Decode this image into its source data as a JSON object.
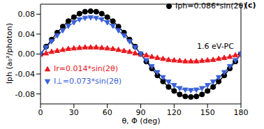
{
  "chart_data": {
    "type": "line",
    "annotations": [
      "(c)",
      "1.6 eV-PC"
    ],
    "x_label": "θ, Φ (deg)",
    "y_label": "Iph (a₀²/photon)",
    "x": [
      0,
      5,
      10,
      15,
      20,
      25,
      30,
      35,
      40,
      45,
      50,
      55,
      60,
      65,
      70,
      75,
      80,
      85,
      90,
      95,
      100,
      105,
      110,
      115,
      120,
      125,
      130,
      135,
      140,
      145,
      150,
      155,
      160,
      165,
      170,
      175,
      180
    ],
    "xlim": [
      0,
      180
    ],
    "xticks": [
      0,
      30,
      60,
      90,
      120,
      150,
      180
    ],
    "ylim": [
      -0.1,
      0.1
    ],
    "yticks": [
      -0.08,
      -0.04,
      {
        "value": 0,
        "label": "0.00"
      },
      0.04,
      0.08
    ],
    "series": [
      {
        "name": "Iph=0.086*sin(2θ)",
        "color": "#000000",
        "marker": "circle",
        "values": [
          0,
          0.015,
          0.029,
          0.043,
          0.055,
          0.066,
          0.074,
          0.081,
          0.085,
          0.086,
          0.085,
          0.081,
          0.074,
          0.066,
          0.055,
          0.043,
          0.029,
          0.015,
          0,
          -0.015,
          -0.029,
          -0.043,
          -0.055,
          -0.066,
          -0.074,
          -0.081,
          -0.085,
          -0.086,
          -0.085,
          -0.081,
          -0.074,
          -0.066,
          -0.055,
          -0.043,
          -0.029,
          -0.015,
          0
        ]
      },
      {
        "name": "Ir=0.014*sin(2θ)",
        "color": "#e8191e",
        "marker": "triangle",
        "values": [
          0,
          0.002,
          0.005,
          0.007,
          0.009,
          0.011,
          0.012,
          0.013,
          0.014,
          0.014,
          0.014,
          0.013,
          0.012,
          0.011,
          0.009,
          0.007,
          0.005,
          0.002,
          0,
          -0.002,
          -0.005,
          -0.007,
          -0.009,
          -0.011,
          -0.012,
          -0.013,
          -0.014,
          -0.014,
          -0.014,
          -0.013,
          -0.012,
          -0.011,
          -0.009,
          -0.007,
          -0.005,
          -0.002,
          0
        ]
      },
      {
        "name": "I⊥=0.073*sin(2θ)",
        "color": "#3a62d8",
        "marker": "triangle-down",
        "values": [
          0,
          0.013,
          0.025,
          0.037,
          0.047,
          0.056,
          0.063,
          0.069,
          0.072,
          0.073,
          0.072,
          0.069,
          0.063,
          0.056,
          0.047,
          0.037,
          0.025,
          0.013,
          0,
          -0.013,
          -0.025,
          -0.037,
          -0.047,
          -0.056,
          -0.063,
          -0.069,
          -0.072,
          -0.073,
          -0.072,
          -0.069,
          -0.063,
          -0.056,
          -0.047,
          -0.037,
          -0.025,
          -0.013,
          0
        ]
      }
    ]
  }
}
